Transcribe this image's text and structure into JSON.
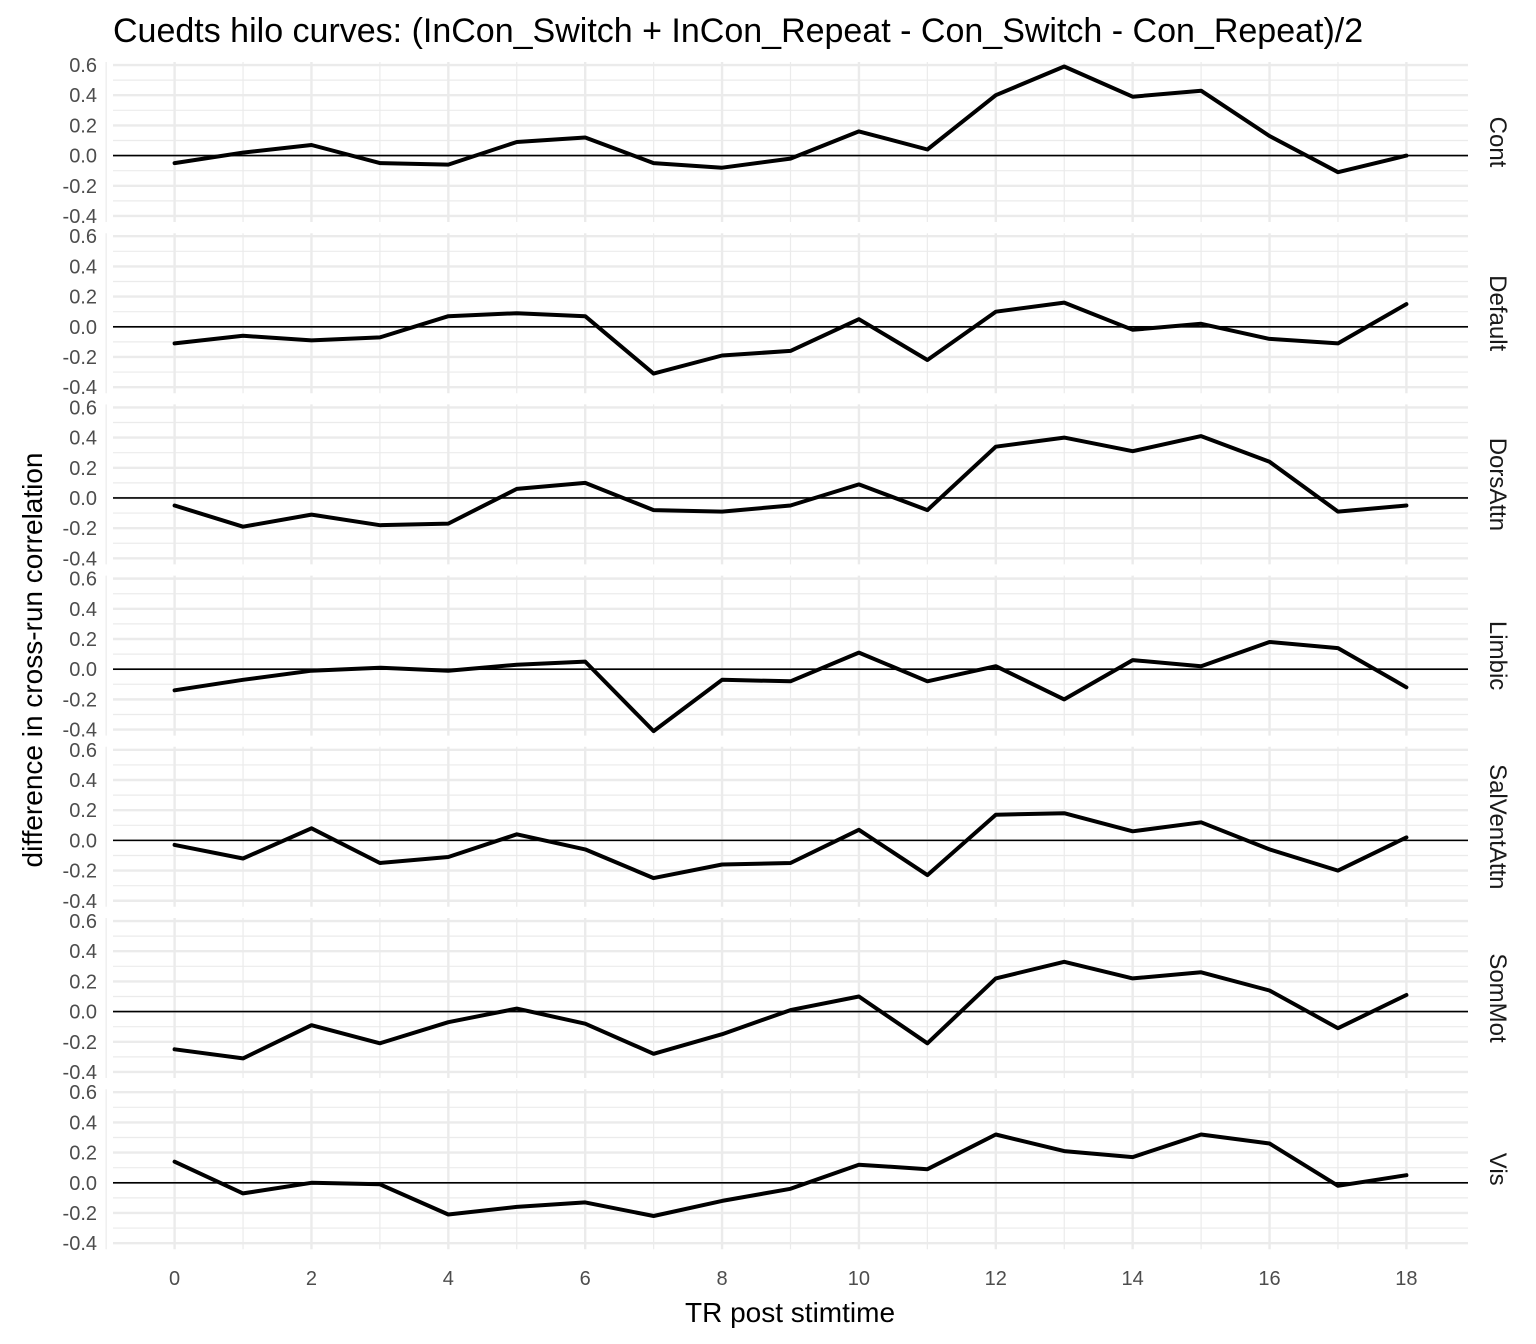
{
  "chart_data": {
    "type": "line",
    "title": "Cuedts hilo curves: (InCon_Switch + InCon_Repeat - Con_Switch - Con_Repeat)/2",
    "xlabel": "TR post stimtime",
    "ylabel": "difference in cross-run correlation",
    "x": [
      0,
      1,
      2,
      3,
      4,
      5,
      6,
      7,
      8,
      9,
      10,
      11,
      12,
      13,
      14,
      15,
      16,
      17,
      18
    ],
    "x_ticks": [
      0,
      2,
      4,
      6,
      8,
      10,
      12,
      14,
      16,
      18
    ],
    "x_tick_labels": [
      "0",
      "2",
      "4",
      "6",
      "8",
      "10",
      "12",
      "14",
      "16",
      "18"
    ],
    "xlim": [
      -0.9,
      18.9
    ],
    "y_ticks": [
      0.6,
      0.4,
      0.2,
      0.0,
      -0.2,
      -0.4
    ],
    "y_tick_labels": [
      "0.6",
      "0.4",
      "0.2",
      "0.0",
      "-0.2",
      "-0.4"
    ],
    "ylim": [
      -0.44,
      0.62
    ],
    "grid": true,
    "reference_line": 0,
    "line_color": "#000000",
    "grid_color": "#ebebeb",
    "facets": [
      {
        "label": "Cont",
        "values": [
          -0.05,
          0.02,
          0.07,
          -0.05,
          -0.06,
          0.09,
          0.12,
          -0.05,
          -0.08,
          -0.02,
          0.16,
          0.04,
          0.4,
          0.59,
          0.39,
          0.43,
          0.13,
          -0.11,
          0.0
        ]
      },
      {
        "label": "Default",
        "values": [
          -0.11,
          -0.06,
          -0.09,
          -0.07,
          0.07,
          0.09,
          0.07,
          -0.31,
          -0.19,
          -0.16,
          0.05,
          -0.22,
          0.1,
          0.16,
          -0.02,
          0.02,
          -0.08,
          -0.11,
          0.15
        ]
      },
      {
        "label": "DorsAttn",
        "values": [
          -0.05,
          -0.19,
          -0.11,
          -0.18,
          -0.17,
          0.06,
          0.1,
          -0.08,
          -0.09,
          -0.05,
          0.09,
          -0.08,
          0.34,
          0.4,
          0.31,
          0.41,
          0.24,
          -0.09,
          -0.05
        ]
      },
      {
        "label": "Limbic",
        "values": [
          -0.14,
          -0.07,
          -0.01,
          0.01,
          -0.01,
          0.03,
          0.05,
          -0.41,
          -0.07,
          -0.08,
          0.11,
          -0.08,
          0.02,
          -0.2,
          0.06,
          0.02,
          0.18,
          0.14,
          -0.12
        ]
      },
      {
        "label": "SalVentAttn",
        "values": [
          -0.03,
          -0.12,
          0.08,
          -0.15,
          -0.11,
          0.04,
          -0.06,
          -0.25,
          -0.16,
          -0.15,
          0.07,
          -0.23,
          0.17,
          0.18,
          0.06,
          0.12,
          -0.06,
          -0.2,
          0.02
        ]
      },
      {
        "label": "SomMot",
        "values": [
          -0.25,
          -0.31,
          -0.09,
          -0.21,
          -0.07,
          0.02,
          -0.08,
          -0.28,
          -0.15,
          0.01,
          0.1,
          -0.21,
          0.22,
          0.33,
          0.22,
          0.26,
          0.14,
          -0.11,
          0.11
        ]
      },
      {
        "label": "Vis",
        "values": [
          0.14,
          -0.07,
          0.0,
          -0.01,
          -0.21,
          -0.16,
          -0.13,
          -0.22,
          -0.12,
          -0.04,
          0.12,
          0.09,
          0.32,
          0.21,
          0.17,
          0.32,
          0.26,
          -0.02,
          0.05
        ]
      }
    ]
  }
}
